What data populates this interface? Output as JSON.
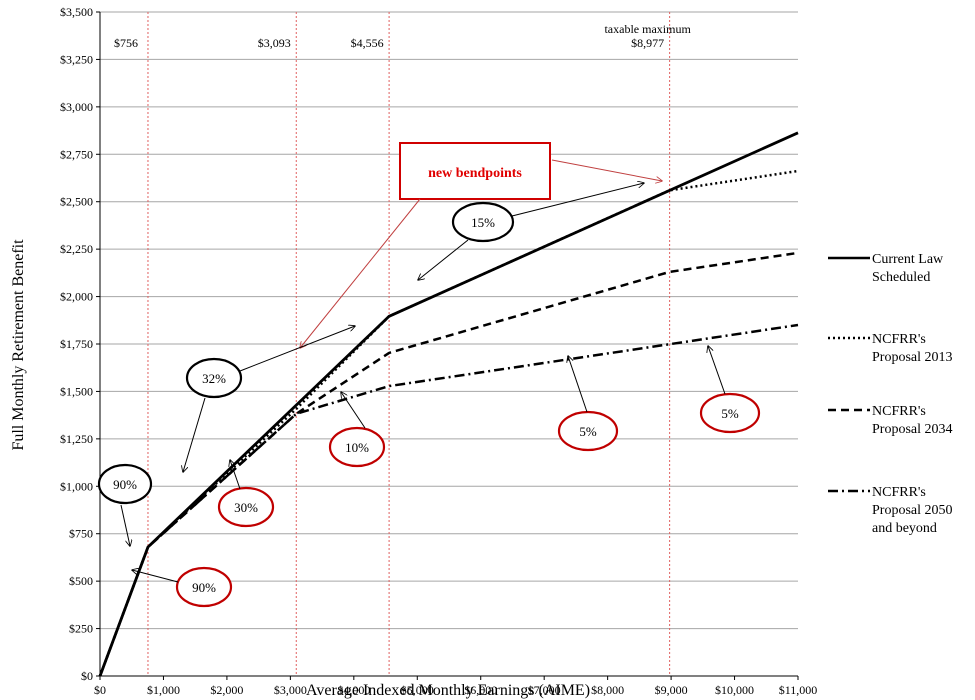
{
  "chart_data": {
    "type": "line",
    "xlabel": "Average Indexed Monthly Earnings (AIME)",
    "ylabel": "Full Monthly Retirement Benefit",
    "xlim": [
      0,
      11000
    ],
    "ylim": [
      0,
      3500
    ],
    "x_ticks": [
      0,
      1000,
      2000,
      3000,
      4000,
      5000,
      6000,
      7000,
      8000,
      9000,
      10000,
      11000
    ],
    "x_tick_labels": [
      "$0",
      "$1,000",
      "$2,000",
      "$3,000",
      "$4,000",
      "$5,000",
      "$6,000",
      "$7,000",
      "$8,000",
      "$9,000",
      "$10,000",
      "$11,000"
    ],
    "y_ticks": [
      0,
      250,
      500,
      750,
      1000,
      1250,
      1500,
      1750,
      2000,
      2250,
      2500,
      2750,
      3000,
      3250,
      3500
    ],
    "y_tick_labels": [
      "$0",
      "$250",
      "$500",
      "$750",
      "$1,000",
      "$1,250",
      "$1,500",
      "$1,750",
      "$2,000",
      "$2,250",
      "$2,500",
      "$2,750",
      "$3,000",
      "$3,250",
      "$3,500"
    ],
    "grid": "horizontal",
    "legend_position": "right",
    "series": [
      {
        "name": "Current Law Scheduled",
        "style": "solid",
        "x": [
          0,
          756,
          4556,
          11000
        ],
        "y": [
          0,
          680,
          1896,
          2863
        ]
      },
      {
        "name": "NCFRR's Proposal 2013",
        "style": "dotted",
        "x": [
          0,
          756,
          3093,
          4556,
          8977,
          11000
        ],
        "y": [
          0,
          680,
          1408,
          1896,
          2560,
          2662
        ]
      },
      {
        "name": "NCFRR's Proposal 2034",
        "style": "dashed",
        "x": [
          0,
          756,
          3093,
          4556,
          8977,
          11000
        ],
        "y": [
          0,
          680,
          1382,
          1703,
          2130,
          2230
        ]
      },
      {
        "name": "NCFRR's Proposal 2050 and beyond",
        "style": "dashdot",
        "x": [
          0,
          756,
          3093,
          4556,
          8977,
          11000
        ],
        "y": [
          0,
          680,
          1382,
          1528,
          1749,
          1850
        ]
      }
    ],
    "bendpoints": [
      {
        "x": 756,
        "label": "$756"
      },
      {
        "x": 3093,
        "label": "$3,093"
      },
      {
        "x": 4556,
        "label": "$4,556"
      },
      {
        "x": 8977,
        "label": "$8,977",
        "label_top": "taxable maximum"
      }
    ],
    "annotations": [
      {
        "text": "new bendpoints",
        "boxed": true,
        "color": "#e00000"
      },
      {
        "text": "90%",
        "color": "#000000"
      },
      {
        "text": "32%",
        "color": "#000000"
      },
      {
        "text": "15%",
        "color": "#000000"
      },
      {
        "text": "90%",
        "color": "#c00000"
      },
      {
        "text": "30%",
        "color": "#c00000"
      },
      {
        "text": "10%",
        "color": "#c00000"
      },
      {
        "text": "5%",
        "color": "#c00000"
      },
      {
        "text": "5%",
        "color": "#c00000"
      }
    ]
  },
  "colors": {
    "grid": "#a6a6a6",
    "bendline": "#e06060",
    "line": "#000000",
    "red_ellipse": "#c00000",
    "bend_box": "#d00000",
    "bend_arrow": "#c04040"
  },
  "legend": {
    "items": [
      {
        "line1": "Current Law",
        "line2": "Scheduled",
        "line3": ""
      },
      {
        "line1": "NCFRR's",
        "line2": "Proposal 2013",
        "line3": ""
      },
      {
        "line1": "NCFRR's",
        "line2": "Proposal 2034",
        "line3": ""
      },
      {
        "line1": "NCFRR's",
        "line2": "Proposal 2050",
        "line3": "and beyond"
      }
    ]
  }
}
